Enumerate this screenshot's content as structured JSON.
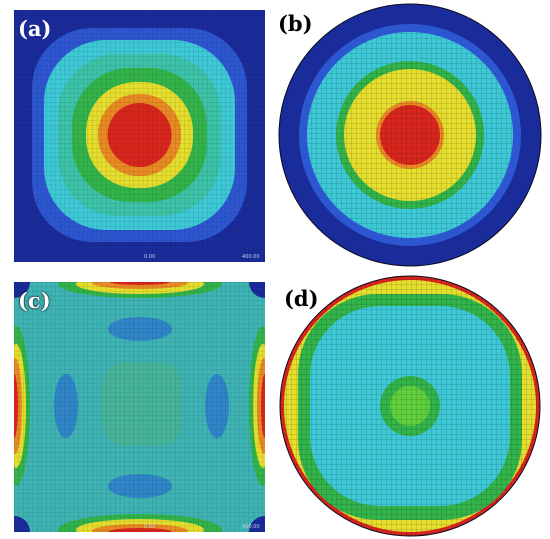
{
  "figure": {
    "panels": [
      {
        "id": "a",
        "label": "(a)",
        "shape": "square",
        "description_colors": [
          "#1c2f9c",
          "#2b5fd0",
          "#37b7d8",
          "#36c4a0",
          "#3ec24a",
          "#d8d830",
          "#e88a20",
          "#d63020"
        ],
        "scale_labels": [
          "0.00",
          "400.00"
        ]
      },
      {
        "id": "b",
        "label": "(b)",
        "shape": "disk"
      },
      {
        "id": "c",
        "label": "(c)",
        "shape": "square",
        "scale_labels": [
          "0.00",
          "400.00"
        ]
      },
      {
        "id": "d",
        "label": "(d)",
        "shape": "disk"
      }
    ],
    "colors": {
      "navy": "#1a2b9a",
      "blue": "#2d56d1",
      "cyan": "#3ec9d6",
      "teal": "#3cc3a8",
      "green": "#33b44a",
      "yellow": "#e5de2c",
      "orange": "#ea8a22",
      "red": "#d9261c",
      "mesh": "#0b0b1e"
    }
  }
}
